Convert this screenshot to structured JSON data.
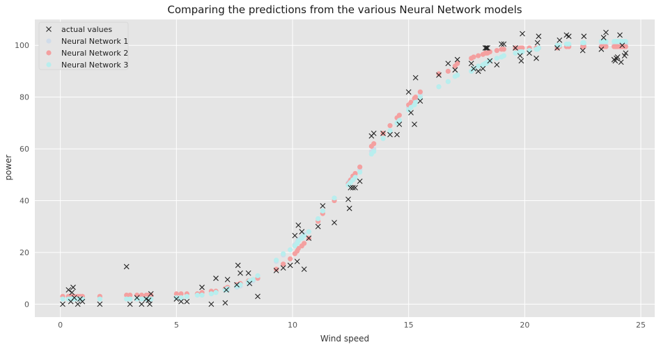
{
  "chart_data": {
    "type": "scatter",
    "title": "Comparing the predictions from the various Neural Network models",
    "xlabel": "Wind speed",
    "ylabel": "power",
    "xlim": [
      -1.1,
      25.6
    ],
    "ylim": [
      -5,
      110
    ],
    "xticks": [
      0,
      5,
      10,
      15,
      20,
      25
    ],
    "yticks": [
      0,
      20,
      40,
      60,
      80,
      100
    ],
    "grid": true,
    "legend_position": "top-left",
    "colors": {
      "background": "#e5e5e5",
      "grid": "#ffffff",
      "actual": "#222222",
      "nn1": "#d0dcea",
      "nn2": "#f4a0a0",
      "nn3": "#b8eeee"
    },
    "series": [
      {
        "name": "actual values",
        "marker": "x",
        "x": [
          0.1,
          0.35,
          0.45,
          0.5,
          0.55,
          0.6,
          0.75,
          0.85,
          0.95,
          1.7,
          2.85,
          3.0,
          3.3,
          3.5,
          3.7,
          3.8,
          3.85,
          3.9,
          5.0,
          5.2,
          5.45,
          6.1,
          6.5,
          6.7,
          7.1,
          7.15,
          7.2,
          7.6,
          7.65,
          7.75,
          8.1,
          8.15,
          8.5,
          9.3,
          9.6,
          9.9,
          10.1,
          10.2,
          10.25,
          10.4,
          10.5,
          10.7,
          11.1,
          11.3,
          11.8,
          12.4,
          12.45,
          12.5,
          12.6,
          12.7,
          12.9,
          13.4,
          13.5,
          13.9,
          14.2,
          14.5,
          14.6,
          15.0,
          15.1,
          15.25,
          15.3,
          15.5,
          16.3,
          16.7,
          17.0,
          17.1,
          17.7,
          17.8,
          18.0,
          18.2,
          18.3,
          18.35,
          18.4,
          18.5,
          18.8,
          19.0,
          19.1,
          19.6,
          19.8,
          19.85,
          19.9,
          20.2,
          20.5,
          20.55,
          20.6,
          21.4,
          21.5,
          21.8,
          21.9,
          22.5,
          22.55,
          23.3,
          23.4,
          23.5,
          23.85,
          23.9,
          23.95,
          24.0,
          24.1,
          24.15,
          24.2,
          24.3,
          24.35
        ],
        "y": [
          0,
          5.5,
          1,
          4.5,
          6.5,
          2.5,
          0,
          2,
          1,
          0,
          14.5,
          0,
          2.5,
          0,
          2,
          1.5,
          0,
          4,
          2,
          1,
          1,
          6.5,
          0,
          10,
          0.5,
          5.5,
          9.5,
          7.5,
          15,
          12,
          12,
          8,
          3,
          13,
          14,
          15,
          26.5,
          16.5,
          30.5,
          28,
          13.5,
          25.5,
          30,
          38,
          31.5,
          40.5,
          37,
          45,
          45,
          45,
          47.5,
          65,
          66,
          66,
          65.5,
          65.5,
          69.5,
          82,
          74,
          69.5,
          87.5,
          78.5,
          88.5,
          93,
          90.5,
          94.5,
          93,
          91,
          90,
          91,
          99,
          99,
          99,
          94,
          92.5,
          100.5,
          100.5,
          99,
          96,
          94,
          104.5,
          97,
          95,
          101,
          103.5,
          99,
          102,
          104,
          103.5,
          98,
          103.5,
          98.5,
          103,
          105,
          94.5,
          94,
          95,
          95.5,
          104,
          93.5,
          100,
          96,
          97
        ]
      },
      {
        "name": "Neural Network 1",
        "marker": "circle",
        "x": [
          0.1,
          0.35,
          0.45,
          0.5,
          0.55,
          0.6,
          0.75,
          0.85,
          0.95,
          1.7,
          2.85,
          3.0,
          3.3,
          3.5,
          3.7,
          3.8,
          3.85,
          3.9,
          5.0,
          5.2,
          5.45,
          5.9,
          6.1,
          6.5,
          6.7,
          7.1,
          7.15,
          7.2,
          7.6,
          7.65,
          7.75,
          8.1,
          8.15,
          8.3,
          8.5,
          9.3,
          9.6,
          9.9,
          10.1,
          10.2,
          10.25,
          10.4,
          10.5,
          10.7,
          11.1,
          11.3,
          11.8,
          12.4,
          12.45,
          12.5,
          12.6,
          12.7,
          12.9,
          13.4,
          13.5,
          13.9,
          14.2,
          14.5,
          14.6,
          15.0,
          15.1,
          15.25,
          15.3,
          15.5,
          16.3,
          16.7,
          17.0,
          17.1,
          17.7,
          17.8,
          18.0,
          18.2,
          18.3,
          18.35,
          18.4,
          18.5,
          18.8,
          19.0,
          19.1,
          19.6,
          19.8,
          19.85,
          19.9,
          20.2,
          20.5,
          20.55,
          20.6,
          21.4,
          21.5,
          21.8,
          21.9,
          22.5,
          22.55,
          23.3,
          23.4,
          23.5,
          23.85,
          23.9,
          23.95,
          24.0,
          24.1,
          24.15,
          24.2,
          24.3,
          24.35
        ],
        "y": [
          2,
          2,
          2,
          2,
          2,
          2,
          2,
          2,
          2,
          2,
          2,
          2,
          2,
          2,
          2,
          2,
          2,
          2,
          2.5,
          2.5,
          3,
          3.5,
          3.5,
          4,
          4.5,
          5.5,
          5.5,
          5.5,
          6.5,
          7,
          7,
          8,
          8.5,
          9,
          10,
          16.5,
          19,
          21,
          23,
          24,
          25,
          26,
          27,
          28,
          33,
          36,
          41,
          47,
          47.5,
          48,
          49,
          50,
          52,
          59,
          60,
          64,
          67,
          70,
          71,
          76,
          77,
          78,
          79,
          81,
          84,
          86,
          88,
          88.5,
          90,
          91,
          92,
          92.5,
          93,
          93,
          93.5,
          94,
          95,
          95.5,
          96,
          97,
          97.5,
          97.5,
          97.5,
          98,
          98.5,
          98.5,
          99,
          99.5,
          99.5,
          100,
          100,
          100,
          100,
          100,
          100,
          100,
          100,
          100.5,
          100.5,
          100.5,
          100.5,
          100.5,
          100.5,
          100.5,
          100.5
        ]
      },
      {
        "name": "Neural Network 2",
        "marker": "circle",
        "x": [
          0.1,
          0.35,
          0.45,
          0.5,
          0.55,
          0.6,
          0.75,
          0.85,
          0.95,
          1.7,
          2.85,
          3.0,
          3.3,
          3.5,
          3.7,
          3.8,
          3.85,
          3.9,
          5.0,
          5.2,
          5.45,
          5.9,
          6.1,
          6.5,
          6.7,
          7.1,
          7.15,
          7.2,
          7.6,
          7.65,
          7.75,
          8.1,
          8.15,
          8.3,
          8.5,
          9.3,
          9.6,
          9.9,
          10.1,
          10.2,
          10.25,
          10.4,
          10.5,
          10.7,
          11.1,
          11.3,
          11.8,
          12.4,
          12.45,
          12.5,
          12.6,
          12.7,
          12.9,
          13.4,
          13.5,
          13.9,
          14.2,
          14.5,
          14.6,
          15.0,
          15.1,
          15.25,
          15.3,
          15.5,
          16.3,
          16.7,
          17.0,
          17.1,
          17.7,
          17.8,
          18.0,
          18.2,
          18.3,
          18.35,
          18.4,
          18.5,
          18.8,
          19.0,
          19.1,
          19.6,
          19.8,
          19.85,
          19.9,
          20.2,
          20.5,
          20.55,
          20.6,
          21.4,
          21.5,
          21.8,
          21.9,
          22.5,
          22.55,
          23.3,
          23.4,
          23.5,
          23.85,
          23.9,
          23.95,
          24.0,
          24.1,
          24.15,
          24.2,
          24.3,
          24.35
        ],
        "y": [
          3,
          3,
          3,
          3,
          3,
          3,
          3,
          3,
          3,
          3,
          3.5,
          3.5,
          3.5,
          3.5,
          3.5,
          3.5,
          3.5,
          3.5,
          4,
          4,
          4,
          4,
          4.5,
          5,
          5,
          6,
          6,
          6.5,
          7.5,
          7.5,
          8,
          9,
          9,
          9.5,
          10,
          13.5,
          15.5,
          17.5,
          19.5,
          20.5,
          21.5,
          22.5,
          23.5,
          25.5,
          32,
          35,
          40,
          46.5,
          47,
          48,
          49.5,
          50.5,
          53,
          61,
          62,
          66,
          69,
          72,
          73,
          77,
          78,
          79.5,
          80,
          82,
          89,
          90,
          92,
          93,
          95,
          95.5,
          96,
          96.5,
          97,
          97,
          97,
          97.5,
          98,
          98.5,
          98.5,
          99,
          99,
          99,
          99,
          99,
          99,
          99,
          99,
          99,
          99.5,
          99.5,
          99.5,
          99.5,
          99.5,
          99.5,
          99.5,
          99.5,
          99.5,
          99.5,
          99.5,
          99.5,
          99.5,
          99.5,
          99.5,
          99.5,
          99.5
        ]
      },
      {
        "name": "Neural Network 3",
        "marker": "circle",
        "x": [
          0.1,
          0.35,
          0.45,
          0.5,
          0.55,
          0.6,
          0.75,
          0.85,
          0.95,
          1.7,
          2.85,
          3.0,
          3.3,
          3.5,
          3.7,
          3.8,
          3.85,
          3.9,
          5.0,
          5.2,
          5.45,
          5.9,
          6.1,
          6.5,
          6.7,
          7.1,
          7.15,
          7.2,
          7.6,
          7.65,
          7.75,
          8.1,
          8.15,
          8.3,
          8.5,
          9.3,
          9.6,
          9.9,
          10.1,
          10.2,
          10.25,
          10.4,
          10.5,
          10.7,
          11.1,
          11.3,
          11.8,
          12.4,
          12.45,
          12.5,
          12.6,
          12.7,
          12.9,
          13.4,
          13.5,
          13.9,
          14.2,
          14.5,
          14.6,
          15.0,
          15.1,
          15.25,
          15.3,
          15.5,
          16.3,
          16.7,
          17.0,
          17.1,
          17.7,
          17.8,
          18.0,
          18.2,
          18.3,
          18.35,
          18.4,
          18.5,
          18.8,
          19.0,
          19.1,
          19.6,
          19.8,
          19.85,
          19.9,
          20.2,
          20.5,
          20.55,
          20.6,
          21.4,
          21.5,
          21.8,
          21.9,
          22.5,
          22.55,
          23.3,
          23.4,
          23.5,
          23.85,
          23.9,
          23.95,
          24.0,
          24.1,
          24.15,
          24.2,
          24.3,
          24.35
        ],
        "y": [
          2,
          2,
          2,
          2,
          2,
          2,
          2,
          2,
          2,
          2,
          2,
          2,
          2,
          2,
          2,
          2,
          2,
          2,
          2.5,
          2.5,
          3,
          3.5,
          3.5,
          4,
          4.5,
          5.5,
          5.5,
          6,
          7,
          7,
          7.5,
          8.5,
          9,
          9.5,
          11,
          17,
          19.5,
          21,
          22.5,
          23.5,
          24.5,
          25.5,
          26.5,
          28,
          33,
          36,
          41,
          46,
          46.5,
          47,
          48,
          49,
          51,
          58,
          59,
          64,
          67,
          70,
          71,
          75,
          76,
          77,
          78,
          80,
          84,
          86,
          88,
          88.5,
          90,
          91,
          92,
          92.5,
          93,
          93,
          93.5,
          94,
          95,
          95.5,
          96,
          97,
          97.5,
          97.5,
          97.5,
          98,
          98.5,
          98.5,
          99,
          100,
          100,
          100.5,
          100.5,
          101,
          101,
          101.5,
          101.5,
          101.5,
          101.5,
          101.5,
          101.5,
          101.5,
          101.5,
          101.5,
          101.5,
          101.5,
          101.5
        ]
      }
    ]
  }
}
